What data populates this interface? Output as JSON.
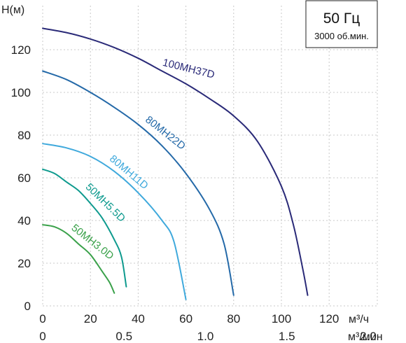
{
  "chart_data": {
    "type": "line",
    "title": "50 Гц",
    "subtitle": "3000 об.мин.",
    "ylabel": "H(м)",
    "xlabel_primary": "м³/ч",
    "xlabel_secondary": "м³/мин",
    "ylim": [
      0,
      140
    ],
    "xlim": [
      0,
      140
    ],
    "grid": true,
    "y_ticks": [
      "0",
      "20",
      "40",
      "60",
      "80",
      "100",
      "120"
    ],
    "x_ticks_primary": [
      "0",
      "20",
      "40",
      "60",
      "80",
      "100",
      "120"
    ],
    "x_ticks_secondary": [
      "0",
      "0.5",
      "1.0",
      "1.5",
      "2.0"
    ],
    "series": [
      {
        "name": "100MH37D",
        "color": "#2a2a78",
        "x": [
          0,
          10,
          20,
          30,
          40,
          50,
          60,
          70,
          80,
          90,
          100,
          105,
          109,
          111
        ],
        "y": [
          130,
          128,
          125,
          121,
          116,
          110,
          104,
          97,
          89,
          77,
          56,
          38,
          17,
          5
        ]
      },
      {
        "name": "80MH22D",
        "color": "#2469a8",
        "x": [
          0,
          10,
          20,
          30,
          40,
          50,
          60,
          70,
          76,
          80
        ],
        "y": [
          110,
          106,
          100,
          93,
          85,
          75,
          62,
          45,
          29,
          5
        ]
      },
      {
        "name": "80MH11D",
        "color": "#3fa9dc",
        "x": [
          0,
          10,
          20,
          30,
          40,
          50,
          55,
          60
        ],
        "y": [
          76,
          74,
          70,
          63,
          53,
          40,
          30,
          3
        ]
      },
      {
        "name": "50MH5.5D",
        "color": "#0e9a8e",
        "x": [
          0,
          5,
          10,
          15,
          20,
          25,
          30,
          33,
          35
        ],
        "y": [
          64,
          62,
          58,
          54,
          48,
          41,
          31,
          23,
          9
        ]
      },
      {
        "name": "50MH3.0D",
        "color": "#3aa14a",
        "x": [
          0,
          5,
          10,
          15,
          20,
          25,
          28,
          30
        ],
        "y": [
          38,
          37,
          34,
          29,
          24,
          16,
          11,
          6
        ]
      }
    ]
  }
}
